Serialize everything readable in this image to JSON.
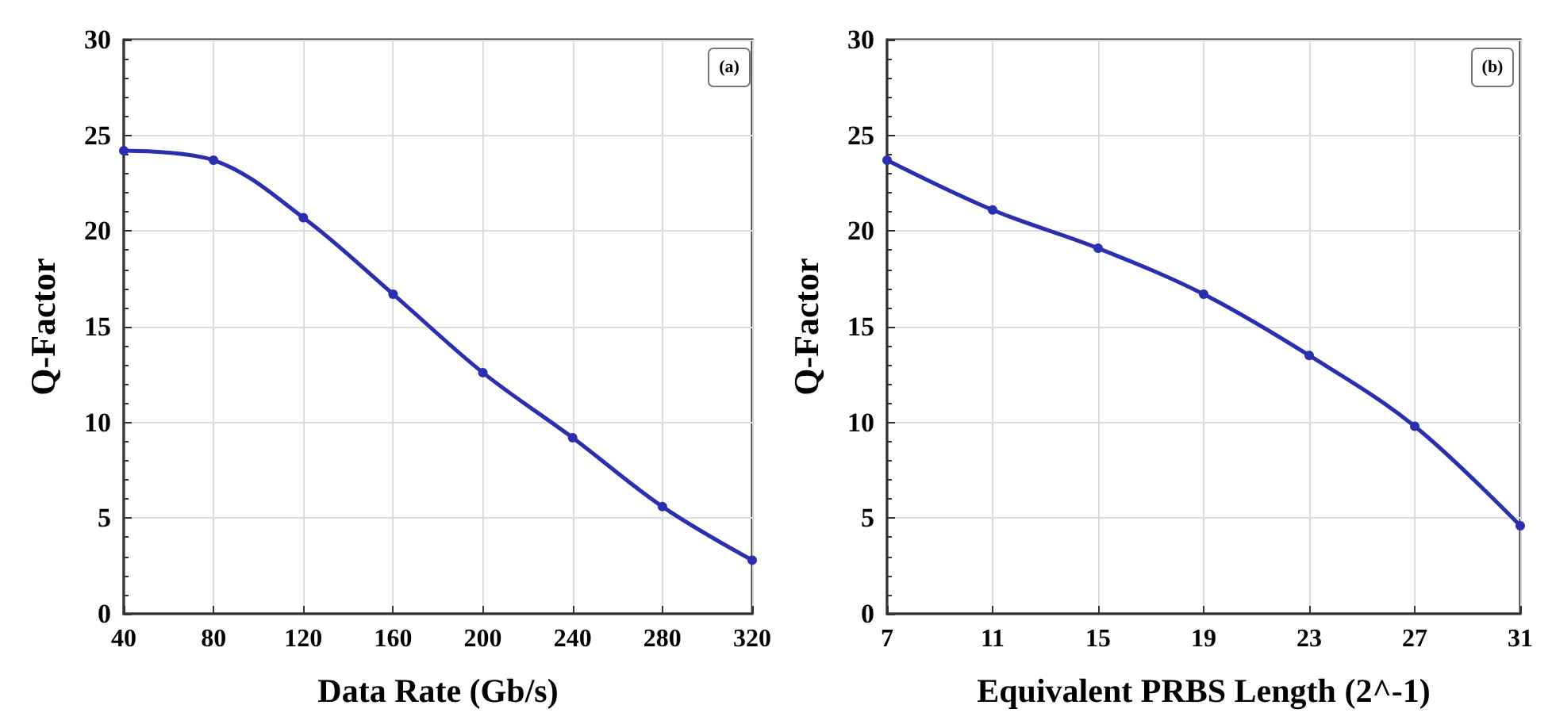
{
  "chart_data": [
    {
      "type": "line",
      "xlabel": "Data Rate (Gb/s)",
      "ylabel": "Q-Factor",
      "annotations": [
        "(a)"
      ],
      "x": [
        40,
        80,
        120,
        160,
        200,
        240,
        280,
        320
      ],
      "series": [
        {
          "color": "#2a2fb0",
          "values": [
            24.2,
            23.7,
            20.7,
            16.7,
            12.6,
            9.2,
            5.6,
            2.8
          ]
        }
      ],
      "xlim": [
        40,
        320
      ],
      "xticks": [
        40,
        80,
        120,
        160,
        200,
        240,
        280,
        320
      ],
      "ylim": [
        0,
        30
      ],
      "yticks": [
        0,
        5,
        10,
        15,
        20,
        25,
        30
      ],
      "grid": true,
      "marker": "circle",
      "line_style": "solid"
    },
    {
      "type": "line",
      "xlabel": "Equivalent PRBS Length (2^-1)",
      "ylabel": "Q-Factor",
      "annotations": [
        "(b)"
      ],
      "x": [
        7,
        11,
        15,
        19,
        23,
        27,
        31
      ],
      "series": [
        {
          "color": "#2a2fb0",
          "values": [
            23.7,
            21.1,
            19.1,
            16.7,
            13.5,
            9.8,
            4.6
          ]
        }
      ],
      "xlim": [
        7,
        31
      ],
      "xticks": [
        7,
        11,
        15,
        19,
        23,
        27,
        31
      ],
      "ylim": [
        0,
        30
      ],
      "yticks": [
        0,
        5,
        10,
        15,
        20,
        25,
        30
      ],
      "grid": true,
      "marker": "circle",
      "line_style": "solid"
    }
  ]
}
